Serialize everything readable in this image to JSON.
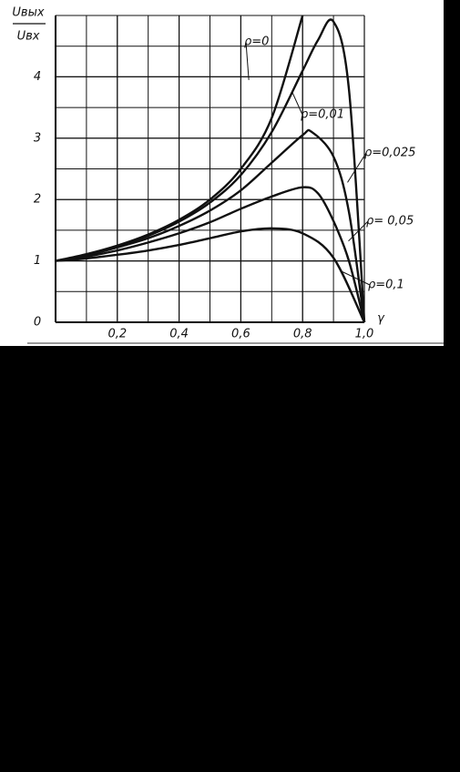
{
  "chart_data": {
    "type": "line",
    "ylabel_numerator": "Uвых",
    "ylabel_denominator": "Uвх",
    "xlabel": "γ",
    "xlim": [
      0,
      1
    ],
    "ylim": [
      0,
      5
    ],
    "xticks": [
      {
        "value": 0.2,
        "label": "0,2"
      },
      {
        "value": 0.4,
        "label": "0,4"
      },
      {
        "value": 0.6,
        "label": "0,6"
      },
      {
        "value": 0.8,
        "label": "0,8"
      },
      {
        "value": 1,
        "label": "1,0"
      }
    ],
    "yticks": [
      0,
      1,
      2,
      3,
      4
    ],
    "grid": true,
    "series": [
      {
        "name": "ρ=0",
        "color": "#111111",
        "x": [
          0,
          0.1,
          0.2,
          0.3,
          0.4,
          0.5,
          0.6,
          0.7,
          0.8
        ],
        "values": [
          1,
          1.11,
          1.25,
          1.43,
          1.67,
          2,
          2.5,
          3.33,
          5
        ]
      },
      {
        "name": "ρ=0,01",
        "color": "#111111",
        "x": [
          0,
          0.1,
          0.2,
          0.3,
          0.4,
          0.5,
          0.6,
          0.7,
          0.8,
          0.85,
          0.9,
          0.95,
          1
        ],
        "values": [
          1,
          1.1,
          1.24,
          1.41,
          1.64,
          1.95,
          2.4,
          3.1,
          4.1,
          4.6,
          4.9,
          3.8,
          0
        ]
      },
      {
        "name": "ρ=0,025",
        "color": "#111111",
        "x": [
          0,
          0.1,
          0.2,
          0.3,
          0.4,
          0.5,
          0.6,
          0.7,
          0.8,
          0.83,
          0.9,
          0.95,
          1
        ],
        "values": [
          1,
          1.09,
          1.22,
          1.37,
          1.57,
          1.82,
          2.15,
          2.6,
          3.05,
          3.1,
          2.7,
          1.8,
          0
        ]
      },
      {
        "name": "ρ= 0,05",
        "color": "#111111",
        "x": [
          0,
          0.1,
          0.2,
          0.3,
          0.4,
          0.5,
          0.6,
          0.7,
          0.8,
          0.85,
          0.9,
          0.95,
          1
        ],
        "values": [
          1,
          1.07,
          1.17,
          1.3,
          1.45,
          1.63,
          1.85,
          2.05,
          2.2,
          2.1,
          1.65,
          1,
          0
        ]
      },
      {
        "name": "ρ=0,1",
        "color": "#111111",
        "x": [
          0,
          0.1,
          0.2,
          0.3,
          0.4,
          0.5,
          0.6,
          0.7,
          0.8,
          0.9,
          1
        ],
        "values": [
          1,
          1.04,
          1.1,
          1.17,
          1.26,
          1.37,
          1.48,
          1.53,
          1.45,
          1.05,
          0
        ]
      }
    ]
  }
}
